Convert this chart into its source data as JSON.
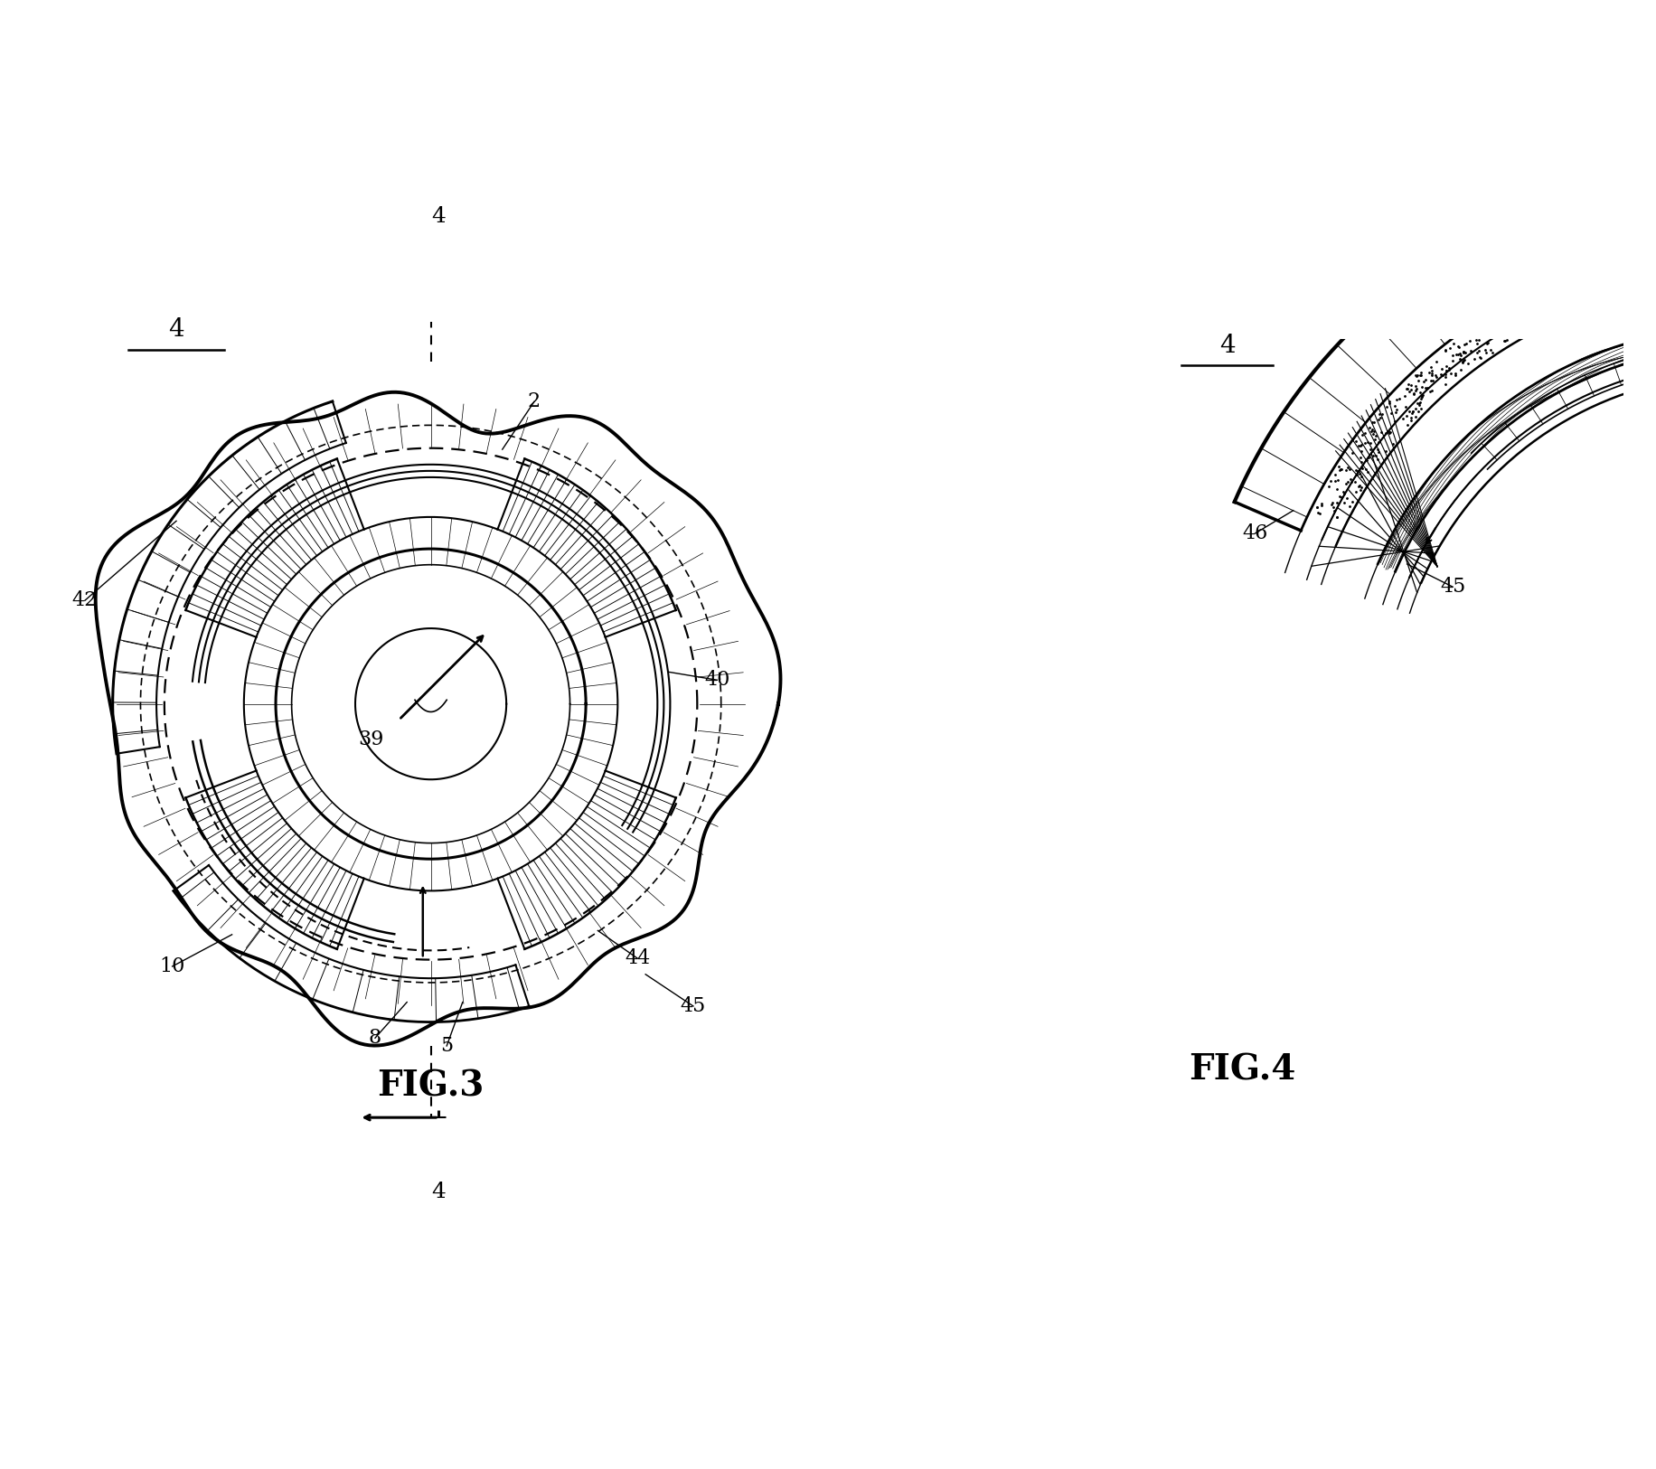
{
  "background": "#ffffff",
  "fig3_caption": "FIG.3",
  "fig4_caption": "FIG.4",
  "fig3_ref_label": "4",
  "fig4_ref_label": "4",
  "lw_thick": 2.5,
  "lw_med": 1.8,
  "lw_thin": 1.0,
  "lw_hair": 0.5,
  "fontsize_label": 16,
  "fontsize_caption": 28,
  "fontsize_ref": 20
}
